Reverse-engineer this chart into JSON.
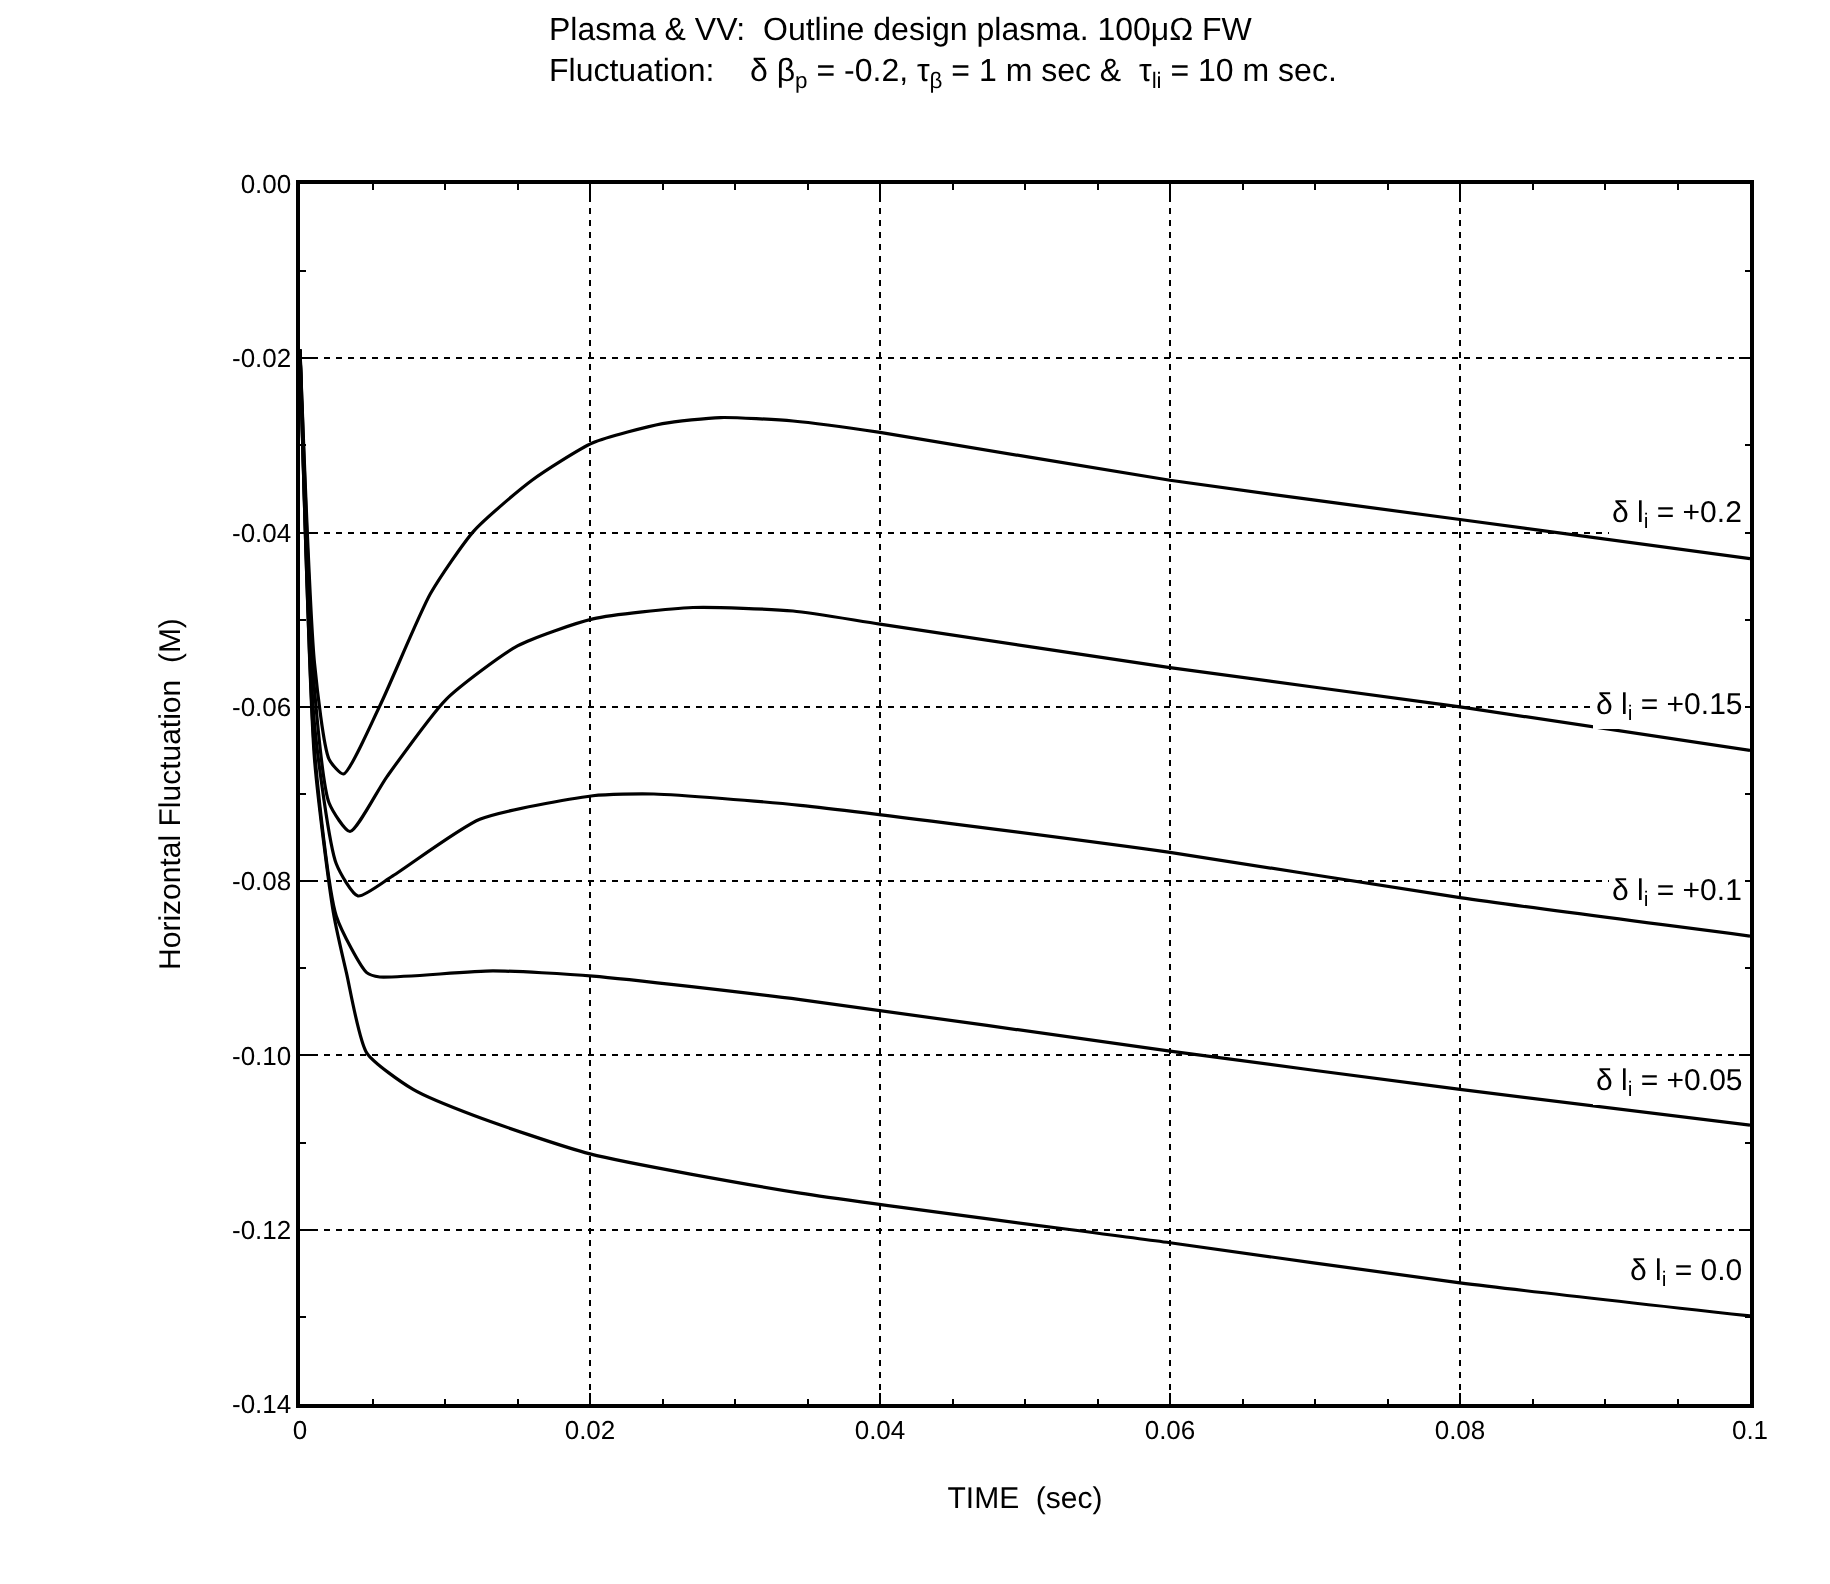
{
  "chart_data": {
    "type": "line",
    "title": "Plasma & VV:  Outline design plasma. 100μΩ FW",
    "subtitle": "Fluctuation:    δ β$_{p}$ = -0.2, τ$_{β}$ = 1 m sec &  τ$_{li}$ = 10 m sec.",
    "xlabel": "TIME  (sec)",
    "ylabel": "Horizontal Fluctuation  (M)",
    "xlim": [
      0,
      0.1
    ],
    "xticks": [
      0,
      0.02,
      0.04,
      0.06,
      0.08,
      0.1
    ],
    "ylim": [
      -0.14,
      0
    ],
    "yticks": [
      {
        "value": 0,
        "label": "0.00"
      },
      -0.02,
      -0.04,
      -0.06,
      -0.08,
      {
        "value": -0.1,
        "label": "-0.10"
      },
      -0.12,
      -0.14
    ],
    "grid": true,
    "legend": "right",
    "marker": "none",
    "line_style": "solid",
    "series": [
      {
        "name": "δ l$_{i}$ = +0.2",
        "color": "#000000",
        "x": [
          0,
          0.001,
          0.002,
          0.003,
          0.0055,
          0.009,
          0.012,
          0.016,
          0.0202,
          0.025,
          0.029,
          0.034,
          0.04,
          0.06,
          0.08,
          0.1
        ],
        "values": [
          -0.019,
          -0.055,
          -0.066,
          -0.0677,
          -0.0599,
          -0.047,
          -0.0398,
          -0.034,
          -0.0297,
          -0.0275,
          -0.0268,
          -0.0272,
          -0.0285,
          -0.034,
          -0.0385,
          -0.043
        ]
      },
      {
        "name": "δ l$_{i}$ = +0.15",
        "color": "#000000",
        "x": [
          0,
          0.001,
          0.002,
          0.00345,
          0.006,
          0.0101,
          0.015,
          0.0202,
          0.0271,
          0.034,
          0.04,
          0.06,
          0.08,
          0.1
        ],
        "values": [
          -0.019,
          -0.058,
          -0.071,
          -0.0743,
          -0.068,
          -0.0591,
          -0.053,
          -0.0499,
          -0.0486,
          -0.049,
          -0.0505,
          -0.0555,
          -0.06,
          -0.065
        ]
      },
      {
        "name": "δ l$_{i}$ = +0.1",
        "color": "#000000",
        "x": [
          0,
          0.001,
          0.0025,
          0.004,
          0.0064,
          0.0124,
          0.0202,
          0.0244,
          0.0345,
          0.06,
          0.08,
          0.1
        ],
        "values": [
          -0.019,
          -0.062,
          -0.078,
          -0.0817,
          -0.0794,
          -0.0729,
          -0.0702,
          -0.07,
          -0.0713,
          -0.0767,
          -0.0819,
          -0.0863
        ]
      },
      {
        "name": "δ l$_{i}$ = +0.05",
        "color": "#000000",
        "x": [
          0,
          0.001,
          0.0025,
          0.0046,
          0.0055,
          0.0133,
          0.0202,
          0.0345,
          0.06,
          0.08,
          0.1
        ],
        "values": [
          -0.019,
          -0.065,
          -0.084,
          -0.0905,
          -0.091,
          -0.0903,
          -0.0909,
          -0.0936,
          -0.0995,
          -0.1039,
          -0.108
        ]
      },
      {
        "name": "δ l$_{i}$ = 0.0",
        "color": "#000000",
        "x": [
          0,
          0.001,
          0.0023,
          0.0032,
          0.0046,
          0.0078,
          0.012,
          0.02,
          0.0345,
          0.06,
          0.08,
          0.1
        ],
        "values": [
          -0.019,
          -0.066,
          -0.0836,
          -0.0905,
          -0.0997,
          -0.1039,
          -0.1069,
          -0.1113,
          -0.1158,
          -0.1215,
          -0.1261,
          -0.1299
        ]
      }
    ]
  }
}
